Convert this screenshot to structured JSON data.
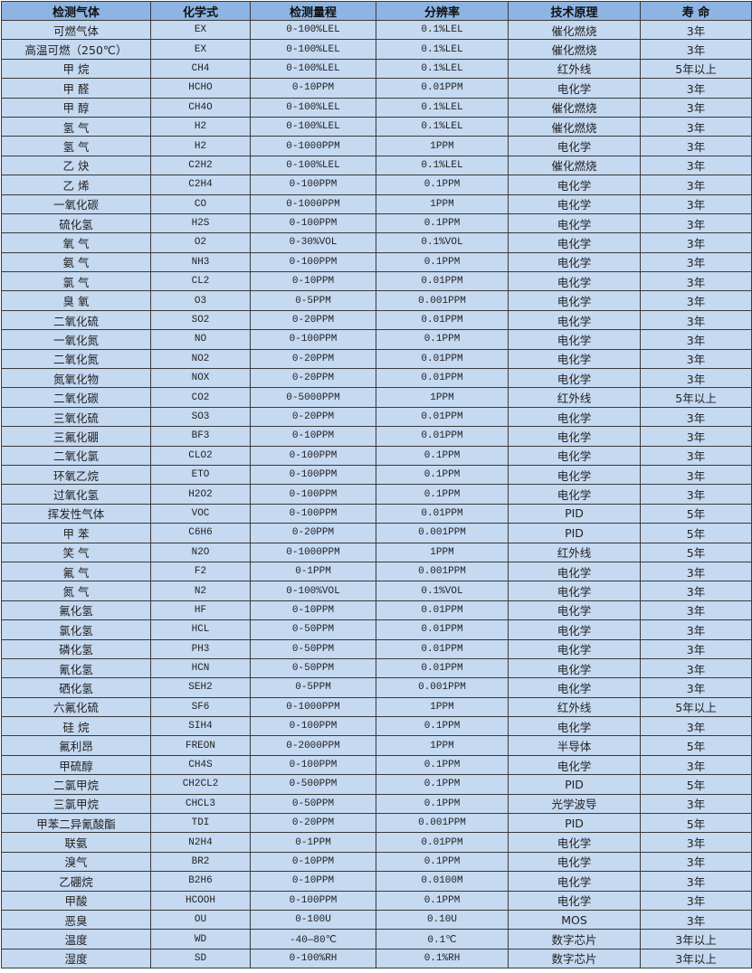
{
  "headers": [
    "检测气体",
    "化学式",
    "检测量程",
    "分辨率",
    "技术原理",
    "寿 命"
  ],
  "rows": [
    [
      "可燃气体",
      "EX",
      "0-100%LEL",
      "0.1%LEL",
      "催化燃烧",
      "3年"
    ],
    [
      "高温可燃（250℃）",
      "EX",
      "0-100%LEL",
      "0.1%LEL",
      "催化燃烧",
      "3年"
    ],
    [
      "甲 烷",
      "CH4",
      "0-100%LEL",
      "0.1%LEL",
      "红外线",
      "5年以上"
    ],
    [
      "甲 醛",
      "HCHO",
      "0-10PPM",
      "0.01PPM",
      "电化学",
      "3年"
    ],
    [
      "甲 醇",
      "CH4O",
      "0-100%LEL",
      "0.1%LEL",
      "催化燃烧",
      "3年"
    ],
    [
      "氢 气",
      "H2",
      "0-100%LEL",
      "0.1%LEL",
      "催化燃烧",
      "3年"
    ],
    [
      "氢 气",
      "H2",
      "0-1000PPM",
      "1PPM",
      "电化学",
      "3年"
    ],
    [
      "乙 炔",
      "C2H2",
      "0-100%LEL",
      "0.1%LEL",
      "催化燃烧",
      "3年"
    ],
    [
      "乙 烯",
      "C2H4",
      "0-100PPM",
      "0.1PPM",
      "电化学",
      "3年"
    ],
    [
      "一氧化碳",
      "CO",
      "0-1000PPM",
      "1PPM",
      "电化学",
      "3年"
    ],
    [
      "硫化氢",
      "H2S",
      "0-100PPM",
      "0.1PPM",
      "电化学",
      "3年"
    ],
    [
      "氧 气",
      "O2",
      "0-30%VOL",
      "0.1%VOL",
      "电化学",
      "3年"
    ],
    [
      "氨 气",
      "NH3",
      "0-100PPM",
      "0.1PPM",
      "电化学",
      "3年"
    ],
    [
      "氯 气",
      "CL2",
      "0-10PPM",
      "0.01PPM",
      "电化学",
      "3年"
    ],
    [
      "臭 氧",
      "O3",
      "0-5PPM",
      "0.001PPM",
      "电化学",
      "3年"
    ],
    [
      "二氧化硫",
      "SO2",
      "0-20PPM",
      "0.01PPM",
      "电化学",
      "3年"
    ],
    [
      "一氧化氮",
      "NO",
      "0-100PPM",
      "0.1PPM",
      "电化学",
      "3年"
    ],
    [
      "二氧化氮",
      "NO2",
      "0-20PPM",
      "0.01PPM",
      "电化学",
      "3年"
    ],
    [
      "氮氧化物",
      "NOX",
      "0-20PPM",
      "0.01PPM",
      "电化学",
      "3年"
    ],
    [
      "二氧化碳",
      "CO2",
      "0-5000PPM",
      "1PPM",
      "红外线",
      "5年以上"
    ],
    [
      "三氧化硫",
      "SO3",
      "0-20PPM",
      "0.01PPM",
      "电化学",
      "3年"
    ],
    [
      "三氟化硼",
      "BF3",
      "0-10PPM",
      "0.01PPM",
      "电化学",
      "3年"
    ],
    [
      "二氧化氯",
      "CLO2",
      "0-100PPM",
      "0.1PPM",
      "电化学",
      "3年"
    ],
    [
      "环氧乙烷",
      "ETO",
      "0-100PPM",
      "0.1PPM",
      "电化学",
      "3年"
    ],
    [
      "过氧化氢",
      "H2O2",
      "0-100PPM",
      "0.1PPM",
      "电化学",
      "3年"
    ],
    [
      "挥发性气体",
      "VOC",
      "0-100PPM",
      "0.01PPM",
      "PID",
      "5年"
    ],
    [
      "甲 苯",
      "C6H6",
      "0-20PPM",
      "0.001PPM",
      "PID",
      "5年"
    ],
    [
      "笑 气",
      "N2O",
      "0-1000PPM",
      "1PPM",
      "红外线",
      "5年"
    ],
    [
      "氟 气",
      "F2",
      "0-1PPM",
      "0.001PPM",
      "电化学",
      "3年"
    ],
    [
      "氮 气",
      "N2",
      "0-100%VOL",
      "0.1%VOL",
      "电化学",
      "3年"
    ],
    [
      "氟化氢",
      "HF",
      "0-10PPM",
      "0.01PPM",
      "电化学",
      "3年"
    ],
    [
      "氯化氢",
      "HCL",
      "0-50PPM",
      "0.01PPM",
      "电化学",
      "3年"
    ],
    [
      "磷化氢",
      "PH3",
      "0-50PPM",
      "0.01PPM",
      "电化学",
      "3年"
    ],
    [
      "氰化氢",
      "HCN",
      "0-50PPM",
      "0.01PPM",
      "电化学",
      "3年"
    ],
    [
      "硒化氢",
      "SEH2",
      "0-5PPM",
      "0.001PPM",
      "电化学",
      "3年"
    ],
    [
      "六氟化硫",
      "SF6",
      "0-1000PPM",
      "1PPM",
      "红外线",
      "5年以上"
    ],
    [
      "硅 烷",
      "SIH4",
      "0-100PPM",
      "0.1PPM",
      "电化学",
      "3年"
    ],
    [
      "氟利昂",
      "FREON",
      "0-2000PPM",
      "1PPM",
      "半导体",
      "5年"
    ],
    [
      "甲硫醇",
      "CH4S",
      "0-100PPM",
      "0.1PPM",
      "电化学",
      "3年"
    ],
    [
      "二氯甲烷",
      "CH2CL2",
      "0-500PPM",
      "0.1PPM",
      "PID",
      "5年"
    ],
    [
      "三氯甲烷",
      "CHCL3",
      "0-50PPM",
      "0.1PPM",
      "光学波导",
      "3年"
    ],
    [
      "甲苯二异氰酸酯",
      "TDI",
      "0-20PPM",
      "0.001PPM",
      "PID",
      "5年"
    ],
    [
      "联氨",
      "N2H4",
      "0-1PPM",
      "0.01PPM",
      "电化学",
      "3年"
    ],
    [
      "溴气",
      "BR2",
      "0-10PPM",
      "0.1PPM",
      "电化学",
      "3年"
    ],
    [
      "乙硼烷",
      "B2H6",
      "0-10PPM",
      "0.0100M",
      "电化学",
      "3年"
    ],
    [
      "甲酸",
      "HCOOH",
      "0-100PPM",
      "0.1PPM",
      "电化学",
      "3年"
    ],
    [
      "恶臭",
      "OU",
      "0-100U",
      "0.10U",
      "MOS",
      "3年"
    ],
    [
      "温度",
      "WD",
      "-40—80℃",
      "0.1℃",
      "数字芯片",
      "3年以上"
    ],
    [
      "湿度",
      "SD",
      "0-100%RH",
      "0.1%RH",
      "数字芯片",
      "3年以上"
    ]
  ]
}
